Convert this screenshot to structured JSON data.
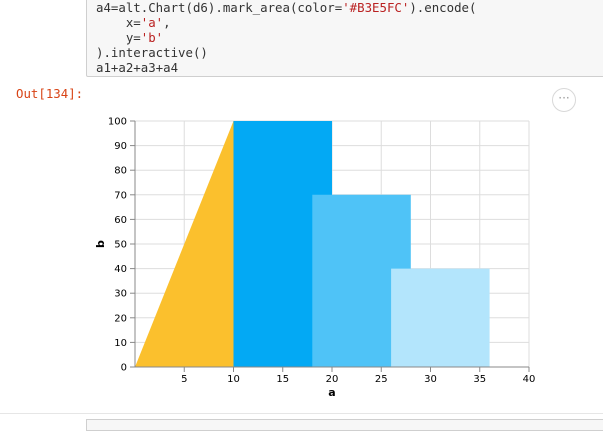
{
  "code": {
    "line1_a": "a4=alt.Chart(d6).mark_area(color=",
    "line1_str": "'#B3E5FC'",
    "line1_b": ").encode(",
    "line2_a": "    x=",
    "line2_str": "'a'",
    "line2_b": ",",
    "line3_a": "    y=",
    "line3_str": "'b'",
    "line4": ").interactive()",
    "line5": "a1+a2+a3+a4"
  },
  "output": {
    "prompt": "Out[134]:",
    "actions_label": "···"
  },
  "chart_data": {
    "type": "area",
    "xlabel": "a",
    "ylabel": "b",
    "xlim": [
      0,
      40
    ],
    "ylim": [
      0,
      100
    ],
    "xticks": [
      5,
      10,
      15,
      20,
      25,
      30,
      35,
      40
    ],
    "yticks": [
      0,
      10,
      20,
      30,
      40,
      50,
      60,
      70,
      80,
      90,
      100
    ],
    "grid": true,
    "series": [
      {
        "color": "#FBC02D",
        "points": [
          [
            0,
            0
          ],
          [
            10,
            100
          ]
        ]
      },
      {
        "color": "#03A9F4",
        "points": [
          [
            10,
            100
          ],
          [
            20,
            100
          ]
        ]
      },
      {
        "color": "#4FC3F7",
        "points": [
          [
            18,
            70
          ],
          [
            28,
            70
          ]
        ]
      },
      {
        "color": "#B3E5FC",
        "points": [
          [
            26,
            40
          ],
          [
            36,
            40
          ]
        ]
      }
    ]
  }
}
